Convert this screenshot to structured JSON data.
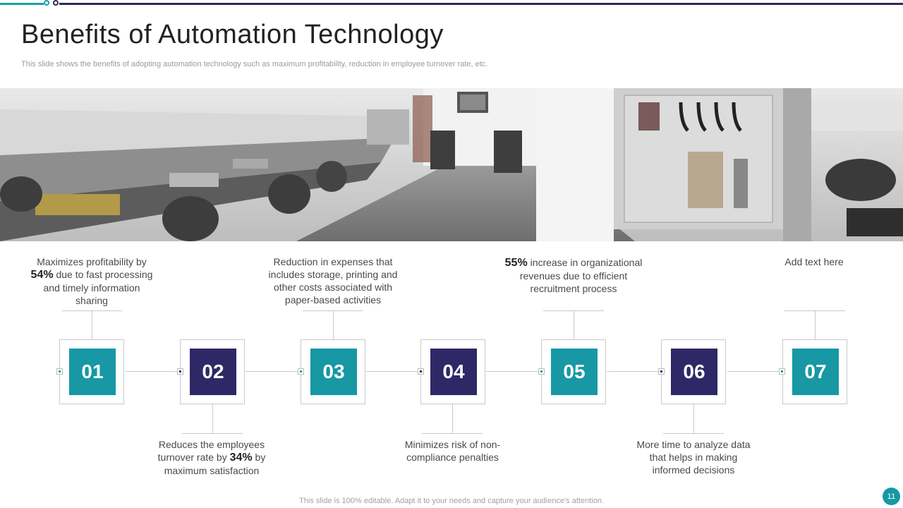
{
  "header": {
    "title": "Benefits of Automation Technology",
    "subtitle": "This slide shows the benefits of adopting automation technology such as maximum profitability, reduction in employee turnover rate, etc."
  },
  "steps": [
    {
      "number": "01",
      "color": "#1798a4"
    },
    {
      "number": "02",
      "color": "#2e2866"
    },
    {
      "number": "03",
      "color": "#1798a4"
    },
    {
      "number": "04",
      "color": "#2e2866"
    },
    {
      "number": "05",
      "color": "#1798a4"
    },
    {
      "number": "06",
      "color": "#2e2866"
    },
    {
      "number": "07",
      "color": "#1798a4"
    }
  ],
  "texts": {
    "s1": {
      "before": "Maximizes profitability by",
      "strong": "54%",
      "after": "due to fast processing and timely information sharing"
    },
    "s2": {
      "before": "Reduces the employees turnover rate by",
      "strong": "34%",
      "after": "by maximum satisfaction"
    },
    "s3": {
      "text": "Reduction in expenses that includes storage, printing and other costs associated with paper-based activities"
    },
    "s4": {
      "text": "Minimizes risk of non-compliance penalties"
    },
    "s5": {
      "strong": "55%",
      "after": "increase in organizational revenues due to efficient recruitment process"
    },
    "s6": {
      "text": "More time to analyze data that helps in making informed decisions"
    },
    "s7": {
      "text": "Add text here"
    }
  },
  "footer": {
    "note": "This slide is 100% editable. Adapt it to your needs and capture your audience's attention.",
    "page_number": "11"
  },
  "colors": {
    "teal": "#1798a4",
    "navy": "#2e2866",
    "accent_line": "#2c2a5a"
  },
  "image": {
    "name": "automation-lab-photo"
  }
}
